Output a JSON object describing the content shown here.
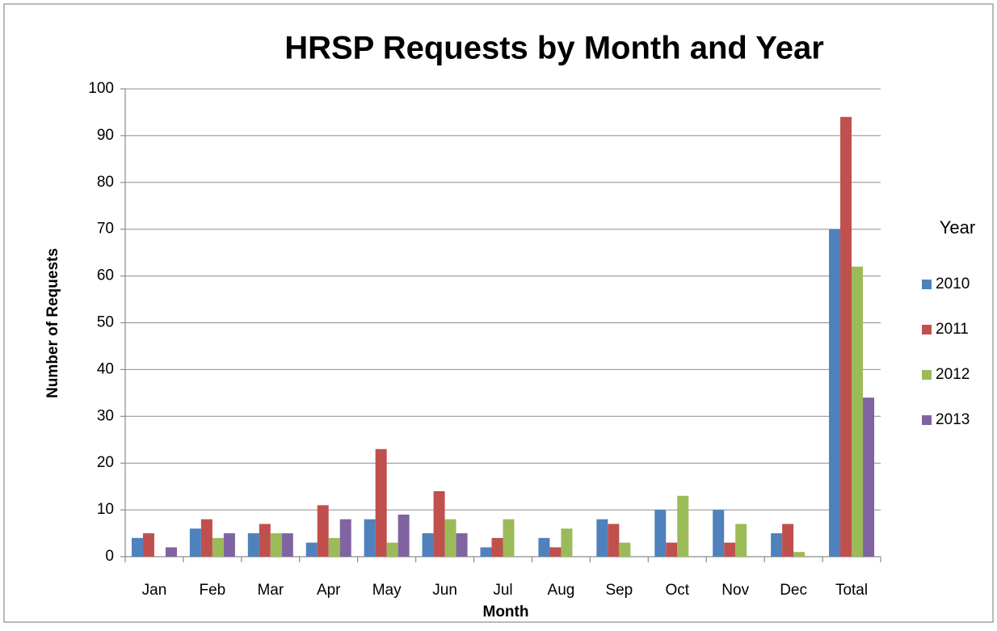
{
  "chart_data": {
    "type": "bar",
    "title": "HRSP Requests by Month and Year",
    "x_label": "Month",
    "y_label": "Number of Requests",
    "legend_title": "Year",
    "categories": [
      "Jan",
      "Feb",
      "Mar",
      "Apr",
      "May",
      "Jun",
      "Jul",
      "Aug",
      "Sep",
      "Oct",
      "Nov",
      "Dec",
      "Total"
    ],
    "series": [
      {
        "name": "2010",
        "color": "#4f81bd",
        "values": [
          4,
          6,
          5,
          3,
          8,
          5,
          2,
          4,
          8,
          10,
          10,
          5,
          70
        ]
      },
      {
        "name": "2011",
        "color": "#c0504d",
        "values": [
          5,
          8,
          7,
          11,
          23,
          14,
          4,
          2,
          7,
          3,
          3,
          7,
          94
        ]
      },
      {
        "name": "2012",
        "color": "#9bbb59",
        "values": [
          0,
          4,
          5,
          4,
          3,
          8,
          8,
          6,
          3,
          13,
          7,
          1,
          62
        ]
      },
      {
        "name": "2013",
        "color": "#8064a2",
        "values": [
          2,
          5,
          5,
          8,
          9,
          5,
          0,
          0,
          0,
          0,
          0,
          0,
          34
        ]
      }
    ],
    "ylim": [
      0,
      100
    ],
    "yticks": [
      0,
      10,
      20,
      30,
      40,
      50,
      60,
      70,
      80,
      90,
      100
    ],
    "grid": true,
    "legend": "right"
  }
}
